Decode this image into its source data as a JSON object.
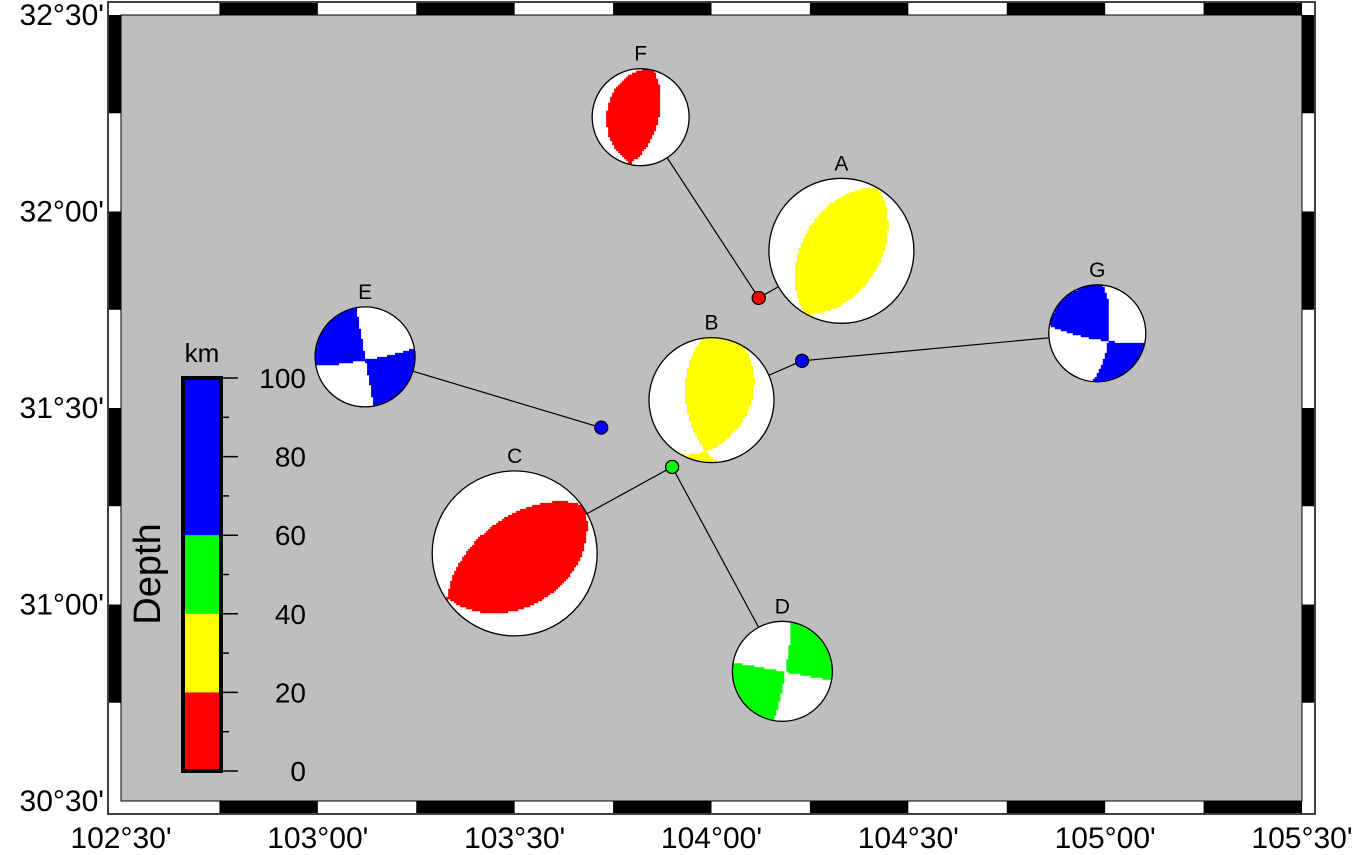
{
  "map": {
    "lon_range": [
      102.5,
      105.5
    ],
    "lat_range": [
      30.5,
      32.5
    ],
    "land_color": "#bebebe",
    "x_ticks": [
      {
        "lon": 102.5,
        "label": "102°30'"
      },
      {
        "lon": 103.0,
        "label": "103°00'"
      },
      {
        "lon": 103.5,
        "label": "103°30'"
      },
      {
        "lon": 104.0,
        "label": "104°00'"
      },
      {
        "lon": 104.5,
        "label": "104°30'"
      },
      {
        "lon": 105.0,
        "label": "105°00'"
      },
      {
        "lon": 105.5,
        "label": "105°30'"
      }
    ],
    "y_ticks": [
      {
        "lat": 32.5,
        "label": "32°30'"
      },
      {
        "lat": 32.0,
        "label": "32°00'"
      },
      {
        "lat": 31.5,
        "label": "31°30'"
      },
      {
        "lat": 31.0,
        "label": "31°00'"
      },
      {
        "lat": 30.5,
        "label": "30°30'"
      }
    ]
  },
  "colorbar": {
    "title": "Depth",
    "unit": "km",
    "min": 0,
    "max": 100,
    "bands": [
      {
        "from": 0,
        "to": 20,
        "color": "#ff0000"
      },
      {
        "from": 20,
        "to": 40,
        "color": "#ffff00"
      },
      {
        "from": 40,
        "to": 60,
        "color": "#00ff00"
      },
      {
        "from": 60,
        "to": 100,
        "color": "#0000ff"
      }
    ],
    "labels": [
      "0",
      "20",
      "40",
      "60",
      "80",
      "100"
    ]
  },
  "events": [
    {
      "label": "A",
      "depth_km": 30,
      "color": "#ffff00",
      "event_lon": 104.12,
      "event_lat": 31.78,
      "beachball_lon": 104.33,
      "beachball_lat": 31.9,
      "size": 1.45,
      "strike": 30,
      "dip": 45,
      "rake": 90
    },
    {
      "label": "B",
      "depth_km": 30,
      "color": "#ffff00",
      "event_lon": 104.23,
      "event_lat": 31.62,
      "beachball_lon": 104.0,
      "beachball_lat": 31.52,
      "size": 1.25,
      "strike": 30,
      "dip": 40,
      "rake": 120
    },
    {
      "label": "C",
      "depth_km": 10,
      "color": "#ff0000",
      "event_lon": 103.9,
      "event_lat": 31.35,
      "beachball_lon": 103.5,
      "beachball_lat": 31.13,
      "size": 1.65,
      "strike": 60,
      "dip": 35,
      "rake": 95
    },
    {
      "label": "D",
      "depth_km": 50,
      "color": "#00ff00",
      "event_lon": 103.9,
      "event_lat": 31.35,
      "beachball_lon": 104.18,
      "beachball_lat": 30.83,
      "size": 1.0,
      "strike": 10,
      "dip": 85,
      "rake": 0
    },
    {
      "label": "E",
      "depth_km": 90,
      "color": "#0000ff",
      "event_lon": 103.72,
      "event_lat": 31.45,
      "beachball_lon": 103.12,
      "beachball_lat": 31.63,
      "size": 1.0,
      "strike": 80,
      "dip": 85,
      "rake": 0
    },
    {
      "label": "F",
      "depth_km": 10,
      "color": "#ff0000",
      "event_lon": 104.12,
      "event_lat": 31.78,
      "beachball_lon": 103.82,
      "beachball_lat": 32.24,
      "size": 0.97,
      "strike": 15,
      "dip": 60,
      "rake": 95
    },
    {
      "label": "G",
      "depth_km": 90,
      "color": "#0000ff",
      "event_lon": 104.23,
      "event_lat": 31.62,
      "beachball_lon": 104.98,
      "beachball_lat": 31.69,
      "size": 0.97,
      "strike": 100,
      "dip": 80,
      "rake": 20
    }
  ]
}
